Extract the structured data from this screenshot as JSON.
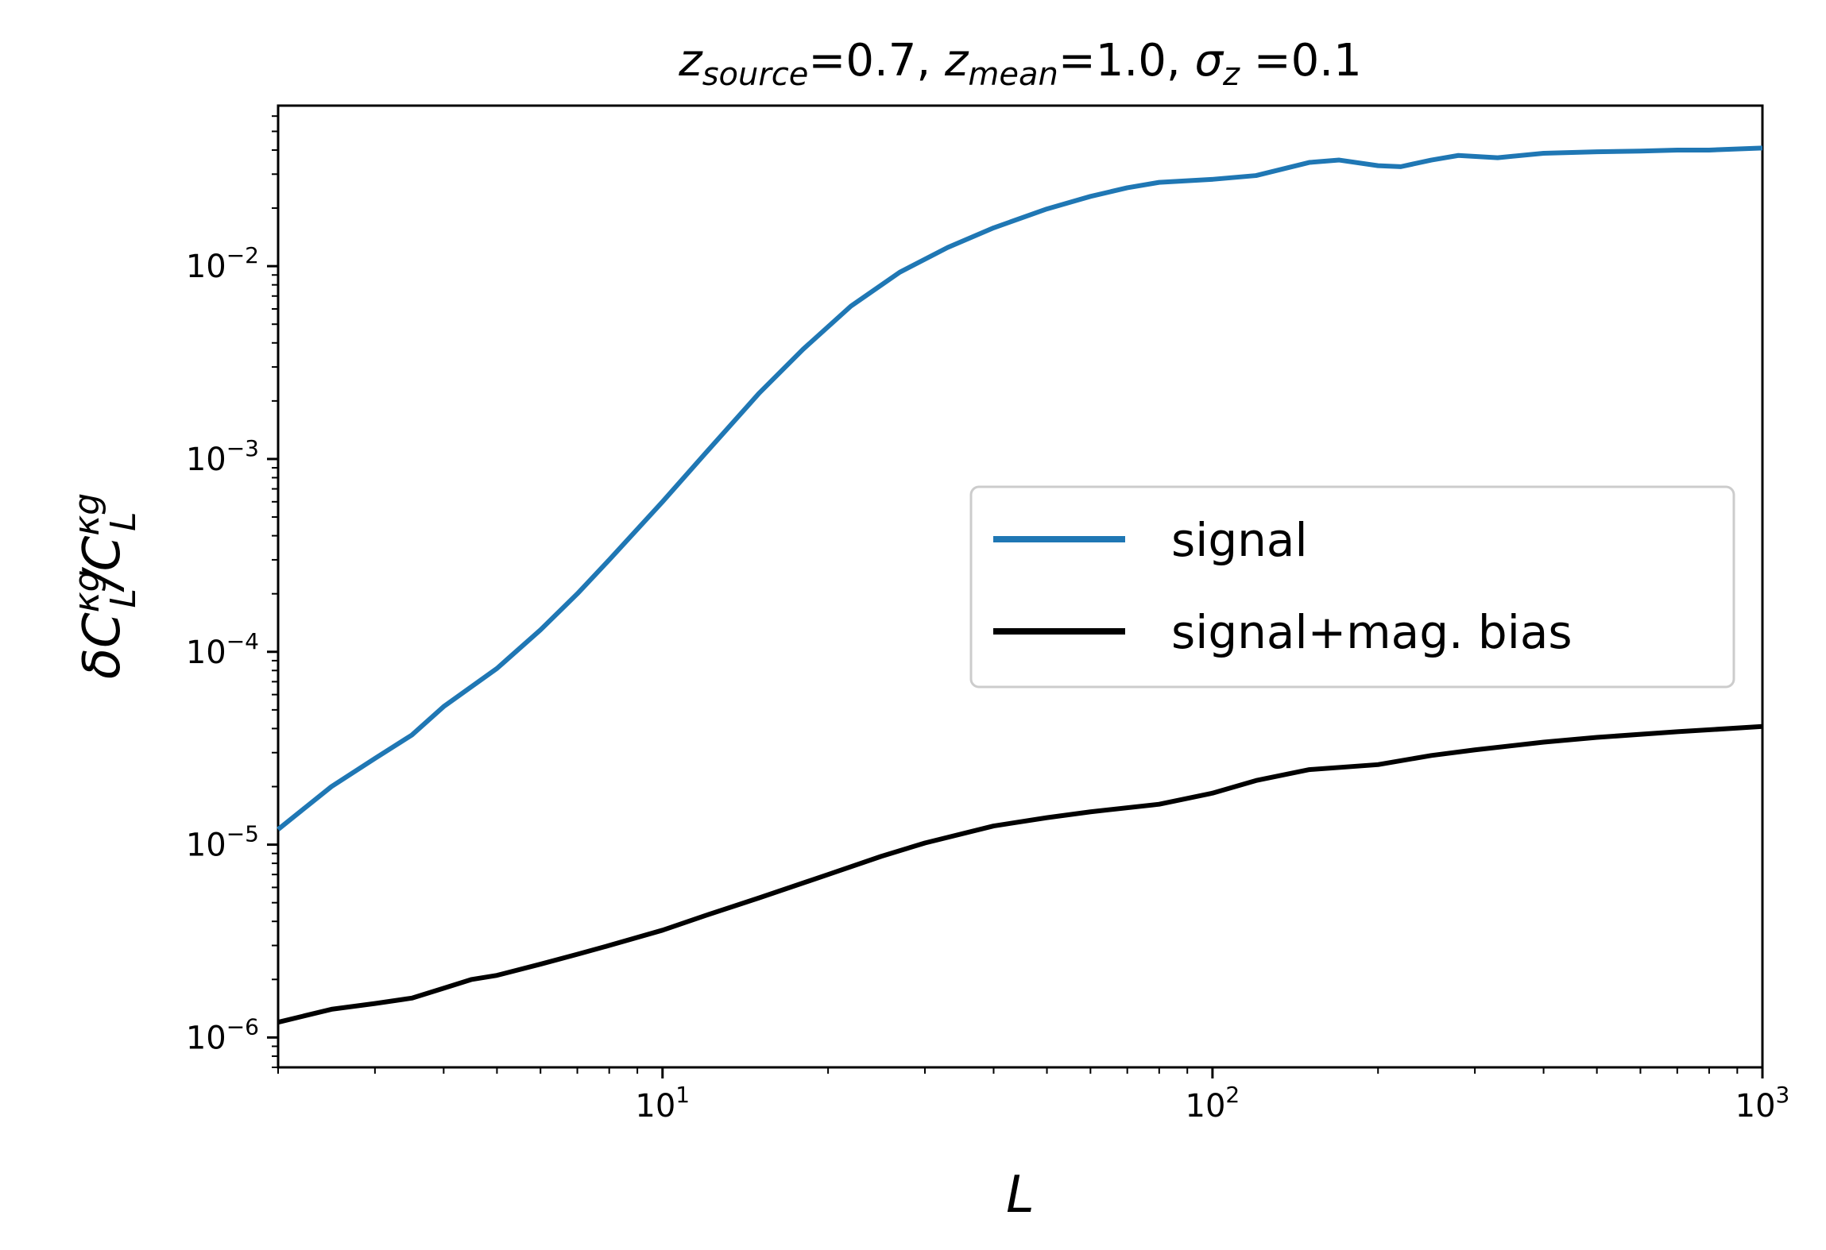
{
  "chart_data": {
    "type": "line",
    "title": {
      "parts": [
        {
          "text": "z",
          "style": "italic",
          "shift": "base"
        },
        {
          "text": "source",
          "style": "italic",
          "shift": "sub"
        },
        {
          "text": "=0.7, ",
          "style": "normal",
          "shift": "base"
        },
        {
          "text": "z",
          "style": "italic",
          "shift": "base"
        },
        {
          "text": "mean",
          "style": "italic",
          "shift": "sub"
        },
        {
          "text": "=1.0, ",
          "style": "normal",
          "shift": "base"
        },
        {
          "text": "σ",
          "style": "italic",
          "shift": "base"
        },
        {
          "text": "z",
          "style": "italic",
          "shift": "sub"
        },
        {
          "text": " =0.1",
          "style": "normal",
          "shift": "base"
        }
      ]
    },
    "xlabel": "L",
    "ylabel": {
      "parts": [
        {
          "text": "δC",
          "style": "italic",
          "shift": "base"
        },
        {
          "text": "κg",
          "style": "italic",
          "shift": "sup"
        },
        {
          "text": "L",
          "style": "italic",
          "shift": "sub"
        },
        {
          "text": "/C",
          "style": "italic",
          "shift": "base"
        },
        {
          "text": "κg",
          "style": "italic",
          "shift": "sup"
        },
        {
          "text": "L",
          "style": "italic",
          "shift": "sub"
        }
      ]
    },
    "xscale": "log",
    "yscale": "log",
    "xlim": [
      2,
      1000
    ],
    "ylim": [
      7e-07,
      0.068
    ],
    "xticks": [
      {
        "value": 10,
        "base": "10",
        "exp": "1"
      },
      {
        "value": 100,
        "base": "10",
        "exp": "2"
      },
      {
        "value": 1000,
        "base": "10",
        "exp": "3"
      }
    ],
    "yticks": [
      {
        "value": 1e-06,
        "base": "10",
        "exp": "−6"
      },
      {
        "value": 1e-05,
        "base": "10",
        "exp": "−5"
      },
      {
        "value": 0.0001,
        "base": "10",
        "exp": "−4"
      },
      {
        "value": 0.001,
        "base": "10",
        "exp": "−3"
      },
      {
        "value": 0.01,
        "base": "10",
        "exp": "−2"
      }
    ],
    "legend_position": "center-right",
    "series": [
      {
        "name": "signal",
        "color": "#1f77b4",
        "x": [
          2,
          2.5,
          3,
          3.5,
          4,
          5,
          6,
          7,
          8,
          10,
          12,
          15,
          18,
          22,
          27,
          33,
          40,
          50,
          60,
          70,
          80,
          100,
          120,
          150,
          170,
          200,
          220,
          250,
          280,
          330,
          400,
          500,
          600,
          700,
          800,
          1000
        ],
        "y": [
          1.2e-05,
          2e-05,
          2.8e-05,
          3.7e-05,
          5.2e-05,
          8.2e-05,
          0.00013,
          0.0002,
          0.0003,
          0.0006,
          0.00108,
          0.0022,
          0.0037,
          0.0062,
          0.0093,
          0.0125,
          0.0158,
          0.0198,
          0.023,
          0.0255,
          0.0272,
          0.0282,
          0.0295,
          0.0345,
          0.0355,
          0.0332,
          0.0328,
          0.0355,
          0.0375,
          0.0365,
          0.0385,
          0.0392,
          0.0395,
          0.04,
          0.04,
          0.041
        ]
      },
      {
        "name": "signal+mag. bias",
        "color": "#000000",
        "x": [
          2,
          2.5,
          3,
          3.5,
          4,
          4.5,
          5,
          6,
          7,
          8,
          10,
          12,
          15,
          20,
          25,
          30,
          40,
          50,
          60,
          80,
          100,
          120,
          150,
          200,
          250,
          300,
          400,
          500,
          700,
          1000
        ],
        "y": [
          1.2e-06,
          1.4e-06,
          1.5e-06,
          1.6e-06,
          1.8e-06,
          2e-06,
          2.1e-06,
          2.4e-06,
          2.7e-06,
          3e-06,
          3.6e-06,
          4.3e-06,
          5.3e-06,
          7e-06,
          8.7e-06,
          1.02e-05,
          1.25e-05,
          1.38e-05,
          1.48e-05,
          1.62e-05,
          1.85e-05,
          2.15e-05,
          2.45e-05,
          2.6e-05,
          2.9e-05,
          3.1e-05,
          3.4e-05,
          3.6e-05,
          3.85e-05,
          4.1e-05
        ]
      }
    ]
  }
}
